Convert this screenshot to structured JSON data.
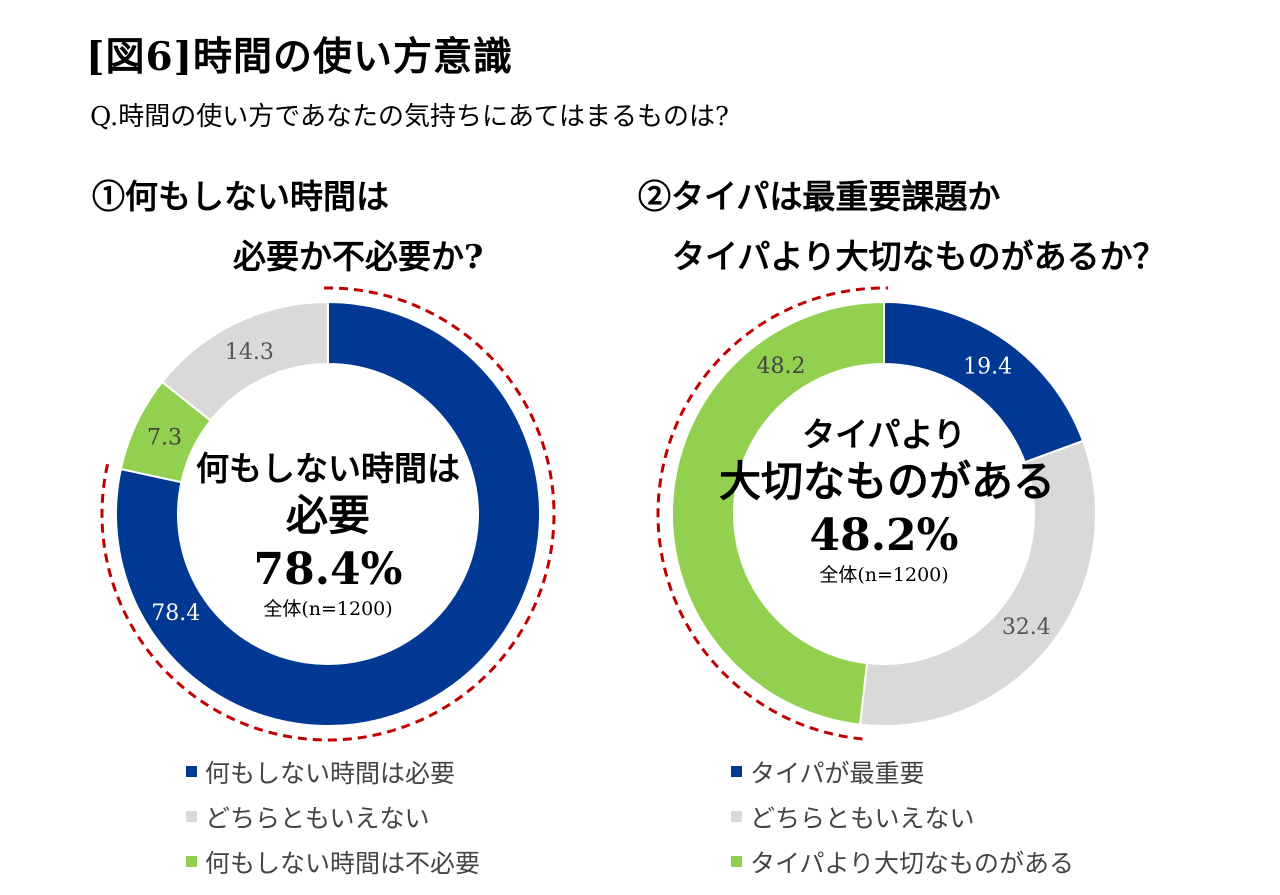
{
  "title": "[図6]時間の使い方意識",
  "question": "Q.時間の使い方であなたの気持ちにあてはまるものは?",
  "colors": {
    "blue": "#003893",
    "gray": "#d9d9d9",
    "green": "#92d050",
    "red_dash": "#c00000"
  },
  "chart_data": [
    {
      "type": "pie",
      "heading_line1": "①何もしない時間は",
      "heading_line2": "必要か不必要か?",
      "slices": [
        {
          "name": "何もしない時間は必要",
          "value": 78.4,
          "label": "78.4",
          "color": "#003893",
          "label_color": "#ffffff"
        },
        {
          "name": "何もしない時間は不必要",
          "value": 7.3,
          "label": "7.3",
          "color": "#92d050",
          "label_color": "#444444"
        },
        {
          "name": "どちらともいえない",
          "value": 14.3,
          "label": "14.3",
          "color": "#d9d9d9",
          "label_color": "#555555"
        }
      ],
      "center": {
        "line1": "何もしない時間は",
        "line2": "必要",
        "percent": "78.4%",
        "sample": "全体(n=1200)"
      },
      "legend": [
        {
          "label": "何もしない時間は必要",
          "color": "#003893"
        },
        {
          "label": "どちらともいえない",
          "color": "#d9d9d9"
        },
        {
          "label": "何もしない時間は不必要",
          "color": "#92d050"
        }
      ],
      "highlight": "何もしない時間は必要"
    },
    {
      "type": "pie",
      "heading_line1": "②タイパは最重要課題か",
      "heading_line2": "タイパより大切なものがあるか？",
      "slices": [
        {
          "name": "タイパが最重要",
          "value": 19.4,
          "label": "19.4",
          "color": "#003893",
          "label_color": "#ffffff"
        },
        {
          "name": "どちらともいえない",
          "value": 32.4,
          "label": "32.4",
          "color": "#d9d9d9",
          "label_color": "#555555"
        },
        {
          "name": "タイパより大切なものがある",
          "value": 48.2,
          "label": "48.2",
          "color": "#92d050",
          "label_color": "#444444"
        }
      ],
      "center": {
        "line1": "タイパより",
        "line2": "大切なものがある",
        "percent": "48.2%",
        "sample": "全体(n=1200)"
      },
      "legend": [
        {
          "label": "タイパが最重要",
          "color": "#003893"
        },
        {
          "label": "どちらともいえない",
          "color": "#d9d9d9"
        },
        {
          "label": "タイパより大切なものがある",
          "color": "#92d050"
        }
      ],
      "highlight": "タイパより大切なものがある"
    }
  ]
}
